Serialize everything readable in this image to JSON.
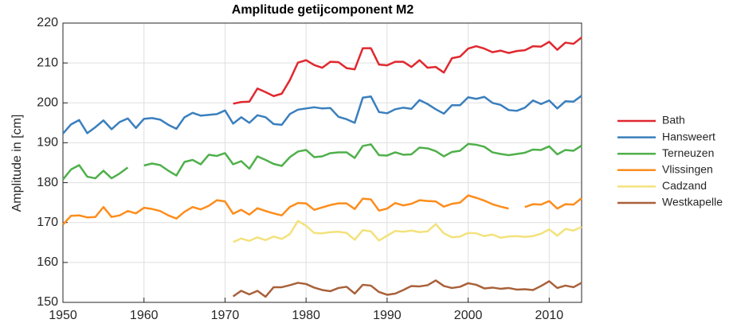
{
  "chart_data": {
    "type": "line",
    "title": "Amplitude getijcomponent M2",
    "ylabel": "Amplitude in [cm]",
    "x": [
      1950,
      1951,
      1952,
      1953,
      1954,
      1955,
      1956,
      1957,
      1958,
      1959,
      1960,
      1961,
      1962,
      1963,
      1964,
      1965,
      1966,
      1967,
      1968,
      1969,
      1970,
      1971,
      1972,
      1973,
      1974,
      1975,
      1976,
      1977,
      1978,
      1979,
      1980,
      1981,
      1982,
      1983,
      1984,
      1985,
      1986,
      1987,
      1988,
      1989,
      1990,
      1991,
      1992,
      1993,
      1994,
      1995,
      1996,
      1997,
      1998,
      1999,
      2000,
      2001,
      2002,
      2003,
      2004,
      2005,
      2006,
      2007,
      2008,
      2009,
      2010,
      2011,
      2012,
      2013,
      2014
    ],
    "xlim": [
      1950,
      2014
    ],
    "xticks": [
      1950,
      1960,
      1970,
      1980,
      1990,
      2000,
      2010
    ],
    "ylim": [
      150,
      220
    ],
    "yticks": [
      150,
      160,
      170,
      180,
      190,
      200,
      210,
      220
    ],
    "grid": true,
    "legend": "right",
    "series": [
      {
        "name": "Bath",
        "color": "#e0282f",
        "values": [
          null,
          null,
          null,
          null,
          null,
          null,
          null,
          null,
          null,
          null,
          null,
          null,
          null,
          null,
          null,
          null,
          null,
          null,
          null,
          null,
          null,
          199.8,
          200.2,
          200.3,
          203.6,
          202.7,
          201.7,
          202.3,
          205.7,
          210.1,
          210.7,
          209.5,
          208.8,
          210.3,
          210.2,
          208.7,
          208.4,
          213.7,
          213.7,
          209.6,
          209.4,
          210.3,
          210.3,
          209.0,
          210.7,
          208.8,
          209.0,
          207.6,
          211.2,
          211.6,
          213.6,
          214.2,
          213.6,
          212.7,
          213.1,
          212.5,
          213.0,
          213.2,
          214.2,
          214.1,
          215.3,
          213.3,
          215.1,
          214.8,
          216.4
        ]
      },
      {
        "name": "Hansweert",
        "color": "#3a7fbd",
        "values": [
          192.3,
          194.6,
          195.7,
          192.4,
          193.9,
          195.6,
          193.4,
          195.2,
          196.1,
          193.7,
          196.0,
          196.2,
          195.8,
          194.5,
          193.5,
          196.4,
          197.5,
          196.8,
          197.0,
          197.2,
          198.1,
          194.8,
          196.4,
          195.0,
          196.9,
          196.4,
          194.7,
          194.5,
          197.2,
          198.3,
          198.6,
          198.9,
          198.6,
          198.7,
          196.5,
          195.9,
          195.0,
          201.3,
          201.6,
          197.7,
          197.4,
          198.4,
          198.8,
          198.5,
          200.7,
          199.7,
          198.4,
          197.3,
          199.4,
          199.4,
          201.4,
          201.0,
          201.5,
          200.0,
          199.5,
          198.2,
          198.0,
          198.8,
          200.6,
          199.7,
          200.6,
          198.6,
          200.4,
          200.3,
          201.8
        ]
      },
      {
        "name": "Terneuzen",
        "color": "#4fb04b",
        "values": [
          180.8,
          183.3,
          184.4,
          181.5,
          181.1,
          183.0,
          181.1,
          182.3,
          183.8,
          null,
          184.3,
          184.8,
          184.4,
          183.0,
          181.8,
          185.2,
          185.7,
          184.6,
          187.0,
          186.7,
          187.4,
          184.6,
          185.4,
          183.5,
          186.6,
          185.7,
          184.7,
          184.2,
          186.4,
          187.8,
          188.2,
          186.4,
          186.6,
          187.4,
          187.6,
          187.6,
          186.2,
          189.2,
          189.6,
          186.9,
          186.8,
          187.6,
          187.0,
          187.1,
          188.8,
          188.6,
          187.9,
          186.6,
          187.7,
          188.0,
          189.7,
          189.5,
          189.0,
          187.6,
          187.2,
          186.9,
          187.2,
          187.5,
          188.3,
          188.2,
          189.1,
          187.1,
          188.2,
          188.0,
          189.3
        ]
      },
      {
        "name": "Vlissingen",
        "color": "#fd8d1c",
        "values": [
          169.5,
          171.7,
          171.8,
          171.3,
          171.4,
          173.9,
          171.4,
          171.8,
          172.9,
          172.3,
          173.7,
          173.4,
          172.9,
          171.8,
          171.0,
          172.7,
          173.9,
          173.3,
          174.2,
          175.6,
          175.3,
          172.2,
          173.2,
          172.0,
          173.6,
          172.9,
          172.3,
          171.8,
          173.9,
          174.9,
          174.8,
          173.2,
          173.8,
          174.4,
          174.8,
          174.8,
          173.4,
          176.0,
          175.8,
          173.0,
          173.5,
          174.9,
          174.3,
          174.7,
          175.6,
          175.4,
          175.3,
          174.0,
          174.7,
          175.0,
          176.8,
          176.2,
          175.5,
          174.6,
          174.0,
          173.5,
          null,
          173.9,
          174.6,
          174.5,
          175.4,
          173.5,
          174.6,
          174.5,
          176.1
        ]
      },
      {
        "name": "Cadzand",
        "color": "#f3e27c",
        "values": [
          null,
          null,
          null,
          null,
          null,
          null,
          null,
          null,
          null,
          null,
          null,
          null,
          null,
          null,
          null,
          null,
          null,
          null,
          null,
          null,
          null,
          165.1,
          166.0,
          165.4,
          166.3,
          165.6,
          166.5,
          165.9,
          167.1,
          170.4,
          169.2,
          167.4,
          167.3,
          167.6,
          167.7,
          167.4,
          165.7,
          168.1,
          167.8,
          165.5,
          166.7,
          167.9,
          167.7,
          168.0,
          167.6,
          167.8,
          169.6,
          167.3,
          166.3,
          166.5,
          167.4,
          167.3,
          166.6,
          167.0,
          166.2,
          166.5,
          166.6,
          166.4,
          166.6,
          167.2,
          168.3,
          166.7,
          168.4,
          168.0,
          168.9
        ]
      },
      {
        "name": "Westkapelle",
        "color": "#a8613a",
        "values": [
          null,
          null,
          null,
          null,
          null,
          null,
          null,
          null,
          null,
          null,
          null,
          null,
          null,
          null,
          null,
          null,
          null,
          null,
          null,
          null,
          null,
          151.5,
          152.9,
          152.0,
          152.9,
          151.4,
          153.8,
          153.8,
          154.3,
          154.9,
          154.6,
          153.7,
          153.1,
          152.8,
          153.6,
          153.9,
          152.2,
          154.4,
          154.2,
          152.6,
          151.9,
          152.2,
          153.1,
          154.1,
          154.0,
          154.3,
          155.5,
          154.1,
          153.6,
          153.9,
          154.8,
          154.4,
          153.5,
          153.7,
          153.4,
          153.6,
          153.2,
          153.3,
          153.1,
          154.1,
          155.3,
          153.6,
          154.2,
          153.8,
          154.9
        ]
      }
    ]
  }
}
